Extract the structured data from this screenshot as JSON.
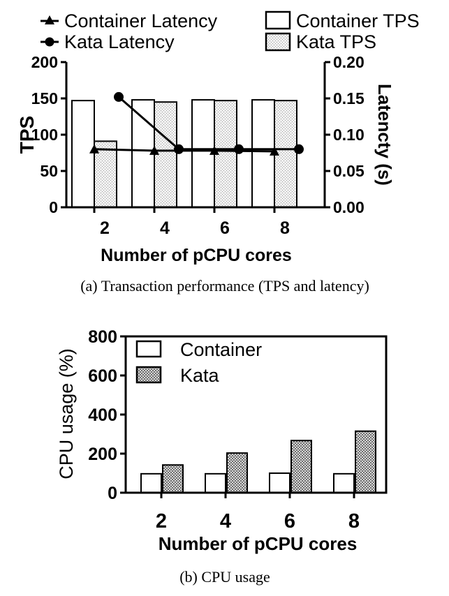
{
  "chart_data": [
    {
      "type": "bar",
      "panel": "a",
      "caption": "(a)  Transaction performance (TPS and latency)",
      "xlabel": "Number of pCPU cores",
      "ylabel": "TPS",
      "ylabel_right": "Latencty (s)",
      "categories": [
        "2",
        "4",
        "6",
        "8"
      ],
      "ylim": [
        0,
        200
      ],
      "yticks": [
        "0",
        "50",
        "100",
        "150",
        "200"
      ],
      "ylim_right": [
        0,
        0.2
      ],
      "yticks_right": [
        "0.00",
        "0.05",
        "0.10",
        "0.15",
        "0.20"
      ],
      "legend": {
        "container_latency": "Container Latency",
        "kata_latency": "Kata Latency",
        "container_tps": "Container TPS",
        "kata_tps": "Kata TPS"
      },
      "series": [
        {
          "name": "Container TPS",
          "kind": "bar",
          "values": [
            147,
            148,
            148,
            148
          ]
        },
        {
          "name": "Kata TPS",
          "kind": "bar",
          "values": [
            91,
            145,
            147,
            147
          ]
        },
        {
          "name": "Container Latency",
          "kind": "line",
          "values": [
            0.08,
            0.078,
            0.078,
            0.077
          ]
        },
        {
          "name": "Kata Latency",
          "kind": "line",
          "values": [
            0.152,
            0.08,
            0.08,
            0.08
          ]
        }
      ]
    },
    {
      "type": "bar",
      "panel": "b",
      "caption": "(b)  CPU  usage",
      "xlabel": "Number of pCPU cores",
      "ylabel": "CPU usage (%)",
      "categories": [
        "2",
        "4",
        "6",
        "8"
      ],
      "ylim": [
        0,
        800
      ],
      "yticks": [
        "0",
        "200",
        "400",
        "600",
        "800"
      ],
      "legend": {
        "container": "Container",
        "kata": "Kata"
      },
      "series": [
        {
          "name": "Container",
          "values": [
            97,
            97,
            100,
            97
          ]
        },
        {
          "name": "Kata",
          "values": [
            142,
            203,
            267,
            315
          ]
        }
      ]
    }
  ]
}
